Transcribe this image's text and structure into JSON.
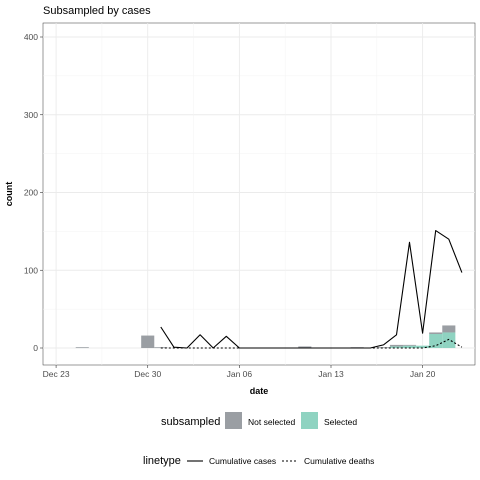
{
  "chart_data": {
    "type": "bar",
    "title": "Subsampled by cases",
    "xlabel": "date",
    "ylabel": "count",
    "ylim": [
      0,
      400
    ],
    "xlim": [
      "Dec 22",
      "Jan 24"
    ],
    "x_ticks": [
      {
        "date": "Dec 23",
        "label": "Dec 23"
      },
      {
        "date": "Dec 30",
        "label": "Dec 30"
      },
      {
        "date": "Jan 06",
        "label": "Jan 06"
      },
      {
        "date": "Jan 13",
        "label": "Jan 13"
      },
      {
        "date": "Jan 20",
        "label": "Jan 20"
      }
    ],
    "y_ticks": [
      0,
      100,
      200,
      300,
      400
    ],
    "grid": true,
    "legend_position": "bottom",
    "legends": [
      {
        "title": "subsampled",
        "entries": [
          {
            "label": "Not selected",
            "color": "#9a9ea3"
          },
          {
            "label": "Selected",
            "color": "#8fd3c1"
          }
        ]
      },
      {
        "title": "linetype",
        "entries": [
          {
            "label": "Cumulative cases",
            "dash": "solid"
          },
          {
            "label": "Cumulative deaths",
            "dash": "dotted"
          }
        ]
      }
    ],
    "bar_series": [
      {
        "name": "Not selected",
        "color": "#9a9ea3",
        "points": [
          {
            "x": "Dec 25",
            "value": 1
          },
          {
            "x": "Dec 30",
            "value": 16
          },
          {
            "x": "Dec 31",
            "value": 1
          },
          {
            "x": "Jan 11",
            "value": 2
          },
          {
            "x": "Jan 15",
            "value": 1
          },
          {
            "x": "Jan 17",
            "value": 1
          },
          {
            "x": "Jan 18",
            "value": 2
          },
          {
            "x": "Jan 19",
            "value": 1
          },
          {
            "x": "Jan 21",
            "value": 2
          },
          {
            "x": "Jan 22",
            "value": 9
          }
        ]
      },
      {
        "name": "Selected",
        "color": "#8fd3c1",
        "points": [
          {
            "x": "Jan 18",
            "value": 2
          },
          {
            "x": "Jan 19",
            "value": 3
          },
          {
            "x": "Jan 20",
            "value": 3
          },
          {
            "x": "Jan 21",
            "value": 18
          },
          {
            "x": "Jan 22",
            "value": 20
          }
        ]
      }
    ],
    "line_series": [
      {
        "name": "Cumulative cases",
        "dash": "solid",
        "points": [
          {
            "x": "Dec 31",
            "y": 27
          },
          {
            "x": "Jan 01",
            "y": 1
          },
          {
            "x": "Jan 02",
            "y": 0
          },
          {
            "x": "Jan 03",
            "y": 17
          },
          {
            "x": "Jan 04",
            "y": 0
          },
          {
            "x": "Jan 05",
            "y": 15
          },
          {
            "x": "Jan 06",
            "y": 0
          },
          {
            "x": "Jan 07",
            "y": 0
          },
          {
            "x": "Jan 08",
            "y": 0
          },
          {
            "x": "Jan 09",
            "y": 0
          },
          {
            "x": "Jan 10",
            "y": 0
          },
          {
            "x": "Jan 11",
            "y": 0
          },
          {
            "x": "Jan 12",
            "y": 0
          },
          {
            "x": "Jan 13",
            "y": 0
          },
          {
            "x": "Jan 14",
            "y": 0
          },
          {
            "x": "Jan 15",
            "y": 0
          },
          {
            "x": "Jan 16",
            "y": 0
          },
          {
            "x": "Jan 17",
            "y": 4
          },
          {
            "x": "Jan 18",
            "y": 17
          },
          {
            "x": "Jan 19",
            "y": 136
          },
          {
            "x": "Jan 20",
            "y": 19
          },
          {
            "x": "Jan 21",
            "y": 151
          },
          {
            "x": "Jan 22",
            "y": 140
          },
          {
            "x": "Jan 23",
            "y": 97
          }
        ]
      },
      {
        "name": "Cumulative deaths",
        "dash": "dotted",
        "points": [
          {
            "x": "Dec 31",
            "y": 0
          },
          {
            "x": "Jan 19",
            "y": 0
          },
          {
            "x": "Jan 20",
            "y": 0
          },
          {
            "x": "Jan 21",
            "y": 3
          },
          {
            "x": "Jan 22",
            "y": 11
          },
          {
            "x": "Jan 23",
            "y": 1
          }
        ]
      }
    ]
  }
}
